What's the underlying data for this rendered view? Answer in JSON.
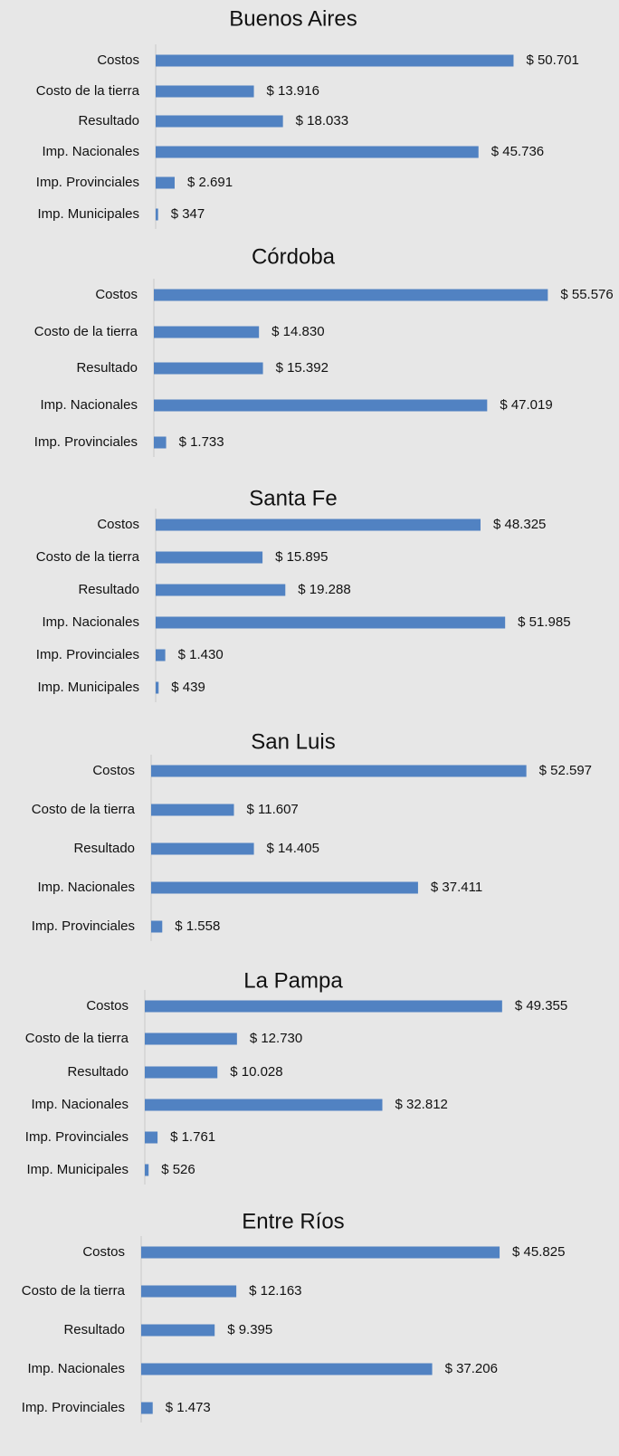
{
  "chart_data": [
    {
      "type": "bar",
      "orientation": "horizontal",
      "title": "Buenos Aires",
      "color": "#5182c2",
      "categories": [
        "Costos",
        "Costo de la tierra",
        "Resultado",
        "Imp. Nacionales",
        "Imp. Provinciales",
        "Imp. Municipales"
      ],
      "values": [
        50701,
        13916,
        18033,
        45736,
        2691,
        347
      ],
      "value_labels": [
        "$ 50.701",
        "$ 13.916",
        "$ 18.033",
        "$ 45.736",
        "$ 2.691",
        "$ 347"
      ],
      "xlim": [
        0,
        60000
      ]
    },
    {
      "type": "bar",
      "orientation": "horizontal",
      "title": "Córdoba",
      "color": "#5182c2",
      "categories": [
        "Costos",
        "Costo de la tierra",
        "Resultado",
        "Imp. Nacionales",
        "Imp. Provinciales"
      ],
      "values": [
        55576,
        14830,
        15392,
        47019,
        1733
      ],
      "value_labels": [
        "$ 55.576",
        "$ 14.830",
        "$ 15.392",
        "$ 47.019",
        "$ 1.733"
      ],
      "xlim": [
        0,
        60000
      ]
    },
    {
      "type": "bar",
      "orientation": "horizontal",
      "title": "Santa Fe",
      "color": "#5182c2",
      "categories": [
        "Costos",
        "Costo de la tierra",
        "Resultado",
        "Imp. Nacionales",
        "Imp. Provinciales",
        "Imp. Municipales"
      ],
      "values": [
        48325,
        15895,
        19288,
        51985,
        1430,
        439
      ],
      "value_labels": [
        "$ 48.325",
        "$ 15.895",
        "$ 19.288",
        "$ 51.985",
        "$ 1.430",
        "$ 439"
      ],
      "xlim": [
        0,
        63000
      ]
    },
    {
      "type": "bar",
      "orientation": "horizontal",
      "title": "San Luis",
      "color": "#5182c2",
      "categories": [
        "Costos",
        "Costo de la tierra",
        "Resultado",
        "Imp. Nacionales",
        "Imp. Provinciales"
      ],
      "values": [
        52597,
        11607,
        14405,
        37411,
        1558
      ],
      "value_labels": [
        "$ 52.597",
        "$ 11.607",
        "$ 14.405",
        "$ 37.411",
        "$ 1.558"
      ],
      "xlim": [
        0,
        60000
      ]
    },
    {
      "type": "bar",
      "orientation": "horizontal",
      "title": "La Pampa",
      "color": "#5182c2",
      "categories": [
        "Costos",
        "Costo de la tierra",
        "Resultado",
        "Imp. Nacionales",
        "Imp. Provinciales",
        "Imp. Municipales"
      ],
      "values": [
        49355,
        12730,
        10028,
        32812,
        1761,
        526
      ],
      "value_labels": [
        "$ 49.355",
        "$ 12.730",
        "$ 10.028",
        "$ 32.812",
        "$ 1.761",
        "$ 526"
      ],
      "xlim": [
        0,
        60000
      ]
    },
    {
      "type": "bar",
      "orientation": "horizontal",
      "title": "Entre Ríos",
      "color": "#5182c2",
      "categories": [
        "Costos",
        "Costo de la tierra",
        "Resultado",
        "Imp. Nacionales",
        "Imp. Provinciales"
      ],
      "values": [
        45825,
        12163,
        9395,
        37206,
        1473
      ],
      "value_labels": [
        "$ 45.825",
        "$ 12.163",
        "$ 9.395",
        "$ 37.206",
        "$ 1.473"
      ],
      "xlim": [
        0,
        56000
      ]
    }
  ]
}
